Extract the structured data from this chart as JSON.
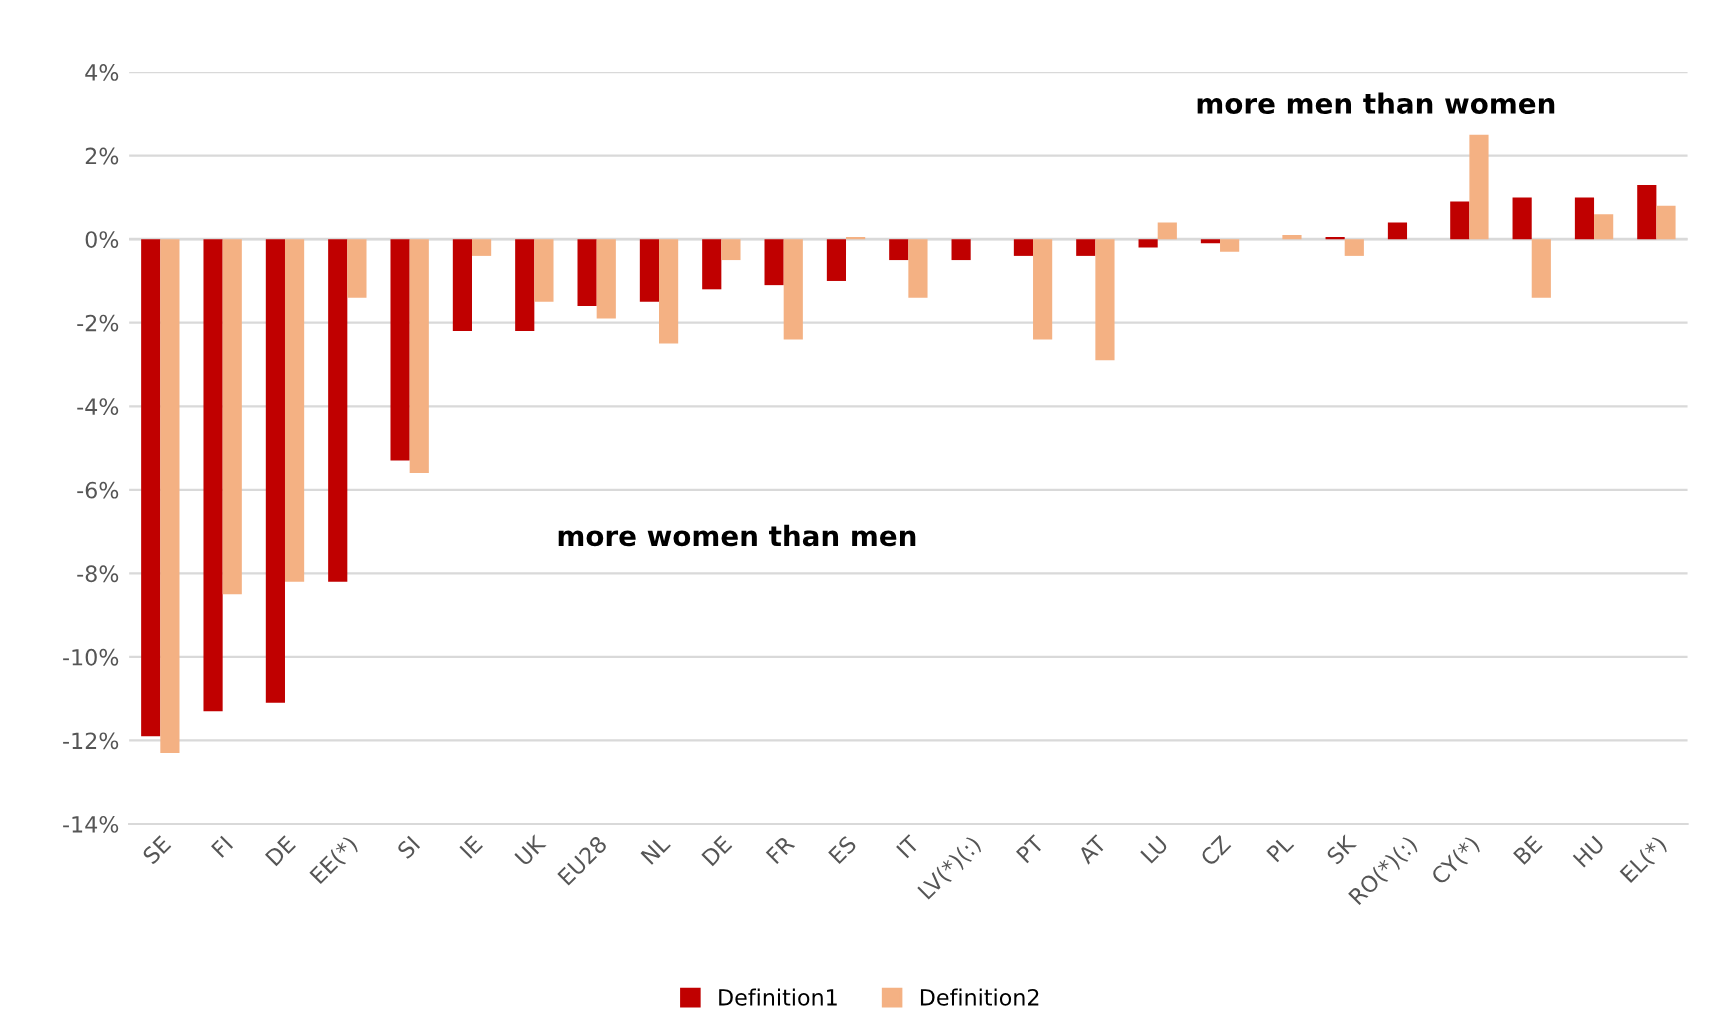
{
  "chart_data": {
    "type": "bar",
    "categories": [
      "SE",
      "FI",
      "DE",
      "EE(*)",
      "SI",
      "IE",
      "UK",
      "EU28",
      "NL",
      "DE",
      "FR",
      "ES",
      "IT",
      "LV(*)(:)",
      "PT",
      "AT",
      "LU",
      "CZ",
      "PL",
      "SK",
      "RO(*)(:)",
      "CY(*)",
      "BE",
      "HU",
      "EL(*)"
    ],
    "series": [
      {
        "name": "Definition1",
        "color": "#c00000",
        "values": [
          -11.9,
          -11.3,
          -11.1,
          -8.2,
          -5.3,
          -2.2,
          -2.2,
          -1.6,
          -1.5,
          -1.2,
          -1.1,
          -1.0,
          -0.5,
          -0.5,
          -0.4,
          -0.4,
          -0.2,
          -0.1,
          null,
          0.05,
          0.4,
          0.9,
          1.0,
          1.0,
          1.3
        ]
      },
      {
        "name": "Definition2",
        "color": "#f4b183",
        "values": [
          -12.3,
          -8.5,
          -8.2,
          -1.4,
          -5.6,
          -0.4,
          -1.5,
          -1.9,
          -2.5,
          -0.5,
          -2.4,
          0.05,
          -1.4,
          null,
          -2.4,
          -2.9,
          0.4,
          -0.3,
          0.1,
          -0.4,
          null,
          2.5,
          -1.4,
          0.6,
          0.8
        ]
      }
    ],
    "ylim": [
      -14,
      4
    ],
    "yticks": [
      {
        "value": -14,
        "label": "-14%"
      },
      {
        "value": -12,
        "label": "-12%"
      },
      {
        "value": -10,
        "label": "-10%"
      },
      {
        "value": -8,
        "label": "-8%"
      },
      {
        "value": -6,
        "label": "-6%"
      },
      {
        "value": -4,
        "label": "-4%"
      },
      {
        "value": -2,
        "label": "-2%"
      },
      {
        "value": 0,
        "label": "0%"
      },
      {
        "value": 2,
        "label": "2%"
      },
      {
        "value": 4,
        "label": "4%"
      }
    ],
    "annotations": [
      "more women than men",
      "more men than women"
    ],
    "grid": "y",
    "legend": "bottom"
  }
}
